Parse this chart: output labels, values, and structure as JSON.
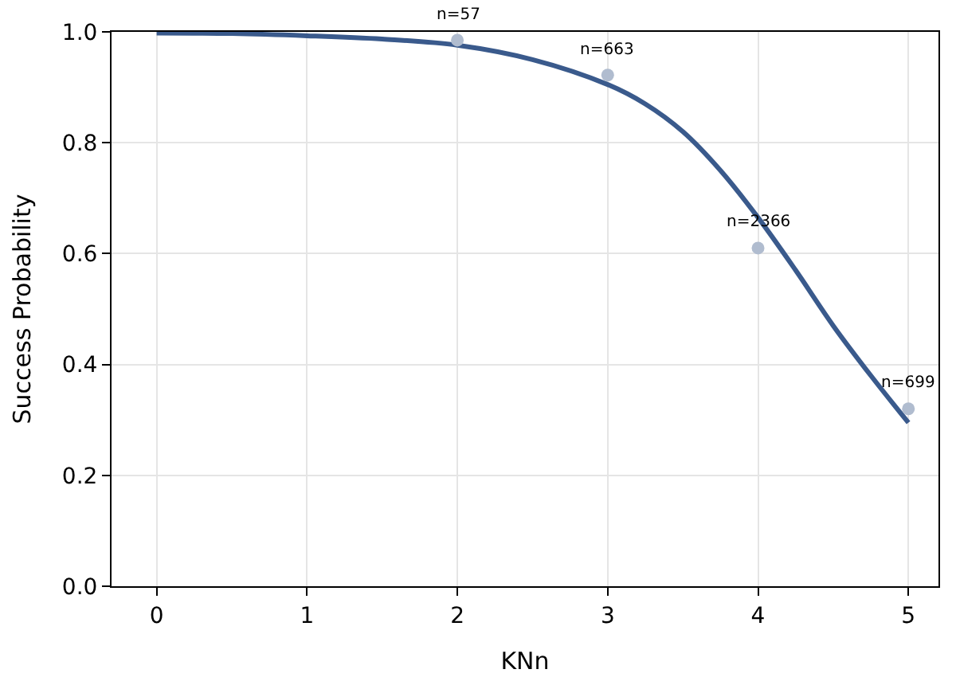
{
  "chart_data": {
    "type": "line",
    "xlabel": "KNn",
    "ylabel": "Success Probability",
    "x": [
      0,
      0.5,
      1,
      1.5,
      2,
      2.5,
      3,
      3.25,
      3.5,
      3.75,
      4,
      4.25,
      4.5,
      4.75,
      5
    ],
    "series": [
      {
        "color": "#3a5a8c",
        "values": [
          0.998,
          0.997,
          0.993,
          0.987,
          0.976,
          0.95,
          0.905,
          0.87,
          0.82,
          0.75,
          0.665,
          0.57,
          0.47,
          0.38,
          0.295
        ]
      },
      {
        "type": "scatter",
        "color": "#b0bccf",
        "x": [
          2,
          3,
          4,
          5
        ],
        "values": [
          0.985,
          0.922,
          0.61,
          0.32
        ]
      }
    ],
    "annotations": [
      {
        "text": "n=57",
        "x": 2,
        "y": 0.985
      },
      {
        "text": "n=663",
        "x": 3,
        "y": 0.922
      },
      {
        "text": "n=2366",
        "x": 4,
        "y": 0.61
      },
      {
        "text": "n=699",
        "x": 5,
        "y": 0.32
      }
    ],
    "xlim": [
      -0.3,
      5.2
    ],
    "xticks": [
      0,
      1,
      2,
      3,
      4,
      5
    ],
    "ylim": [
      0,
      1
    ],
    "yticks": [
      {
        "value": 0,
        "label": "0.0"
      },
      {
        "value": 0.2,
        "label": "0.2"
      },
      {
        "value": 0.4,
        "label": "0.4"
      },
      {
        "value": 0.6,
        "label": "0.6"
      },
      {
        "value": 0.8,
        "label": "0.8"
      },
      {
        "value": 1,
        "label": "1.0"
      }
    ],
    "grid": true
  }
}
